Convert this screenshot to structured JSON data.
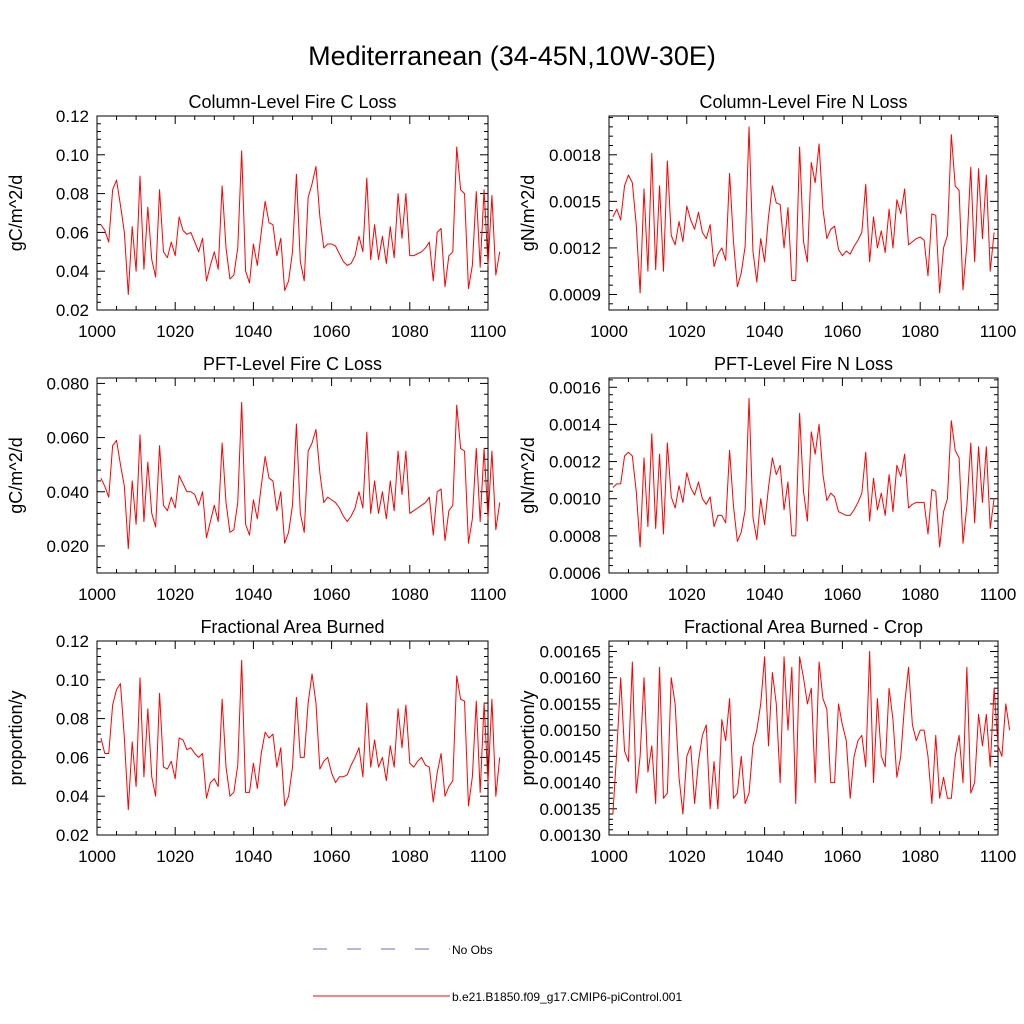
{
  "figure_title": "Mediterranean (34-45N,10W-30E)",
  "colors": {
    "model_line": "#ff0000",
    "obs_line": "#6f6fb8",
    "axis": "#000000"
  },
  "legend": {
    "obs_label": "No Obs",
    "model_label": "b.e21.B1850.f09_g17.CMIP6-piControl.001"
  },
  "chart_data": [
    {
      "type": "line",
      "title": "Column-Level Fire C Loss",
      "ylabel": "gC/m^2/d",
      "xlabel": "",
      "xlim": [
        1000,
        1100
      ],
      "ylim": [
        0.02,
        0.12
      ],
      "xticks": [
        1000,
        1020,
        1040,
        1060,
        1080,
        1100
      ],
      "yticks": [
        0.02,
        0.04,
        0.06,
        0.08,
        0.1,
        0.12
      ],
      "ytick_labels": [
        "0.02",
        "0.04",
        "0.06",
        "0.08",
        "0.10",
        "0.12"
      ],
      "series": [
        {
          "name": "b.e21.B1850.f09_g17.CMIP6-piControl.001",
          "x0": 1001,
          "values": [
            0.064,
            0.061,
            0.055,
            0.082,
            0.087,
            0.074,
            0.06,
            0.028,
            0.063,
            0.04,
            0.089,
            0.041,
            0.073,
            0.046,
            0.037,
            0.082,
            0.05,
            0.047,
            0.055,
            0.048,
            0.068,
            0.061,
            0.059,
            0.06,
            0.055,
            0.05,
            0.057,
            0.035,
            0.043,
            0.05,
            0.041,
            0.084,
            0.052,
            0.036,
            0.038,
            0.052,
            0.102,
            0.04,
            0.034,
            0.054,
            0.043,
            0.06,
            0.076,
            0.065,
            0.064,
            0.048,
            0.057,
            0.03,
            0.035,
            0.05,
            0.09,
            0.045,
            0.035,
            0.078,
            0.085,
            0.094,
            0.068,
            0.052,
            0.054,
            0.054,
            0.053,
            0.049,
            0.045,
            0.043,
            0.044,
            0.048,
            0.058,
            0.05,
            0.088,
            0.046,
            0.064,
            0.046,
            0.058,
            0.044,
            0.063,
            0.047,
            0.08,
            0.057,
            0.08,
            0.048,
            0.048,
            0.049,
            0.05,
            0.052,
            0.055,
            0.035,
            0.06,
            0.062,
            0.032,
            0.048,
            0.05,
            0.104,
            0.082,
            0.08,
            0.031,
            0.043,
            0.081,
            0.042,
            0.082,
            0.043,
            0.079,
            0.038,
            0.05
          ]
        }
      ]
    },
    {
      "type": "line",
      "title": "Column-Level Fire N Loss",
      "ylabel": "gN/m^2/d",
      "xlabel": "",
      "xlim": [
        1000,
        1100
      ],
      "ylim": [
        0.0008,
        0.00205
      ],
      "xticks": [
        1000,
        1020,
        1040,
        1060,
        1080,
        1100
      ],
      "yticks": [
        0.0009,
        0.0012,
        0.0015,
        0.0018
      ],
      "ytick_labels": [
        "0.0009",
        "0.0012",
        "0.0015",
        "0.0018"
      ],
      "series": [
        {
          "name": "b.e21.B1850.f09_g17.CMIP6-piControl.001",
          "x0": 1001,
          "values": [
            0.0014,
            0.00145,
            0.00138,
            0.0016,
            0.00167,
            0.00162,
            0.00135,
            0.00091,
            0.00158,
            0.00105,
            0.00181,
            0.00106,
            0.0016,
            0.00105,
            0.00176,
            0.00128,
            0.00122,
            0.00137,
            0.00124,
            0.00147,
            0.00138,
            0.00132,
            0.00143,
            0.0013,
            0.00126,
            0.00135,
            0.00108,
            0.00116,
            0.0012,
            0.00112,
            0.00168,
            0.00124,
            0.00095,
            0.00104,
            0.00121,
            0.00198,
            0.00118,
            0.00098,
            0.00126,
            0.00111,
            0.0014,
            0.0016,
            0.00149,
            0.00148,
            0.0012,
            0.00146,
            0.00099,
            0.00099,
            0.00185,
            0.00124,
            0.00111,
            0.00175,
            0.00162,
            0.00187,
            0.00145,
            0.00126,
            0.00132,
            0.00134,
            0.00119,
            0.00115,
            0.00118,
            0.00116,
            0.00121,
            0.00125,
            0.0013,
            0.00161,
            0.00111,
            0.0014,
            0.0012,
            0.00131,
            0.00117,
            0.00145,
            0.0012,
            0.00151,
            0.00142,
            0.00158,
            0.00122,
            0.00124,
            0.00126,
            0.00127,
            0.00125,
            0.00102,
            0.00142,
            0.00141,
            0.00091,
            0.0012,
            0.00128,
            0.00193,
            0.0016,
            0.00157,
            0.00093,
            0.00122,
            0.00172,
            0.00111,
            0.00171,
            0.00126,
            0.00167,
            0.00105,
            0.0013
          ]
        }
      ]
    },
    {
      "type": "line",
      "title": "PFT-Level Fire C Loss",
      "ylabel": "gC/m^2/d",
      "xlabel": "",
      "xlim": [
        1000,
        1100
      ],
      "ylim": [
        0.01,
        0.082
      ],
      "xticks": [
        1000,
        1020,
        1040,
        1060,
        1080,
        1100
      ],
      "yticks": [
        0.02,
        0.04,
        0.06,
        0.08
      ],
      "ytick_labels": [
        "0.020",
        "0.040",
        "0.060",
        "0.080"
      ],
      "series": [
        {
          "name": "b.e21.B1850.f09_g17.CMIP6-piControl.001",
          "x0": 1001,
          "values": [
            0.045,
            0.042,
            0.038,
            0.057,
            0.059,
            0.05,
            0.042,
            0.019,
            0.044,
            0.028,
            0.061,
            0.029,
            0.051,
            0.032,
            0.027,
            0.057,
            0.035,
            0.033,
            0.038,
            0.034,
            0.046,
            0.043,
            0.04,
            0.04,
            0.039,
            0.035,
            0.04,
            0.023,
            0.029,
            0.035,
            0.029,
            0.058,
            0.036,
            0.025,
            0.026,
            0.036,
            0.073,
            0.028,
            0.024,
            0.037,
            0.03,
            0.042,
            0.053,
            0.045,
            0.044,
            0.033,
            0.04,
            0.021,
            0.025,
            0.035,
            0.065,
            0.032,
            0.025,
            0.055,
            0.058,
            0.063,
            0.047,
            0.036,
            0.038,
            0.037,
            0.036,
            0.034,
            0.031,
            0.029,
            0.031,
            0.034,
            0.04,
            0.034,
            0.062,
            0.032,
            0.044,
            0.032,
            0.04,
            0.03,
            0.044,
            0.033,
            0.055,
            0.039,
            0.055,
            0.032,
            0.033,
            0.034,
            0.035,
            0.036,
            0.038,
            0.024,
            0.04,
            0.041,
            0.022,
            0.033,
            0.035,
            0.072,
            0.056,
            0.055,
            0.021,
            0.03,
            0.056,
            0.029,
            0.056,
            0.03,
            0.055,
            0.026,
            0.036
          ]
        }
      ]
    },
    {
      "type": "line",
      "title": "PFT-Level Fire N Loss",
      "ylabel": "gN/m^2/d",
      "xlabel": "",
      "xlim": [
        1000,
        1100
      ],
      "ylim": [
        0.0006,
        0.00165
      ],
      "xticks": [
        1000,
        1020,
        1040,
        1060,
        1080,
        1100
      ],
      "yticks": [
        0.0006,
        0.0008,
        0.001,
        0.0012,
        0.0014,
        0.0016
      ],
      "ytick_labels": [
        "0.0006",
        "0.0008",
        "0.0010",
        "0.0012",
        "0.0014",
        "0.0016"
      ],
      "series": [
        {
          "name": "b.e21.B1850.f09_g17.CMIP6-piControl.001",
          "x0": 1001,
          "values": [
            0.00106,
            0.00108,
            0.00108,
            0.00123,
            0.00125,
            0.00123,
            0.00104,
            0.00074,
            0.00122,
            0.00085,
            0.00135,
            0.00084,
            0.00124,
            0.00081,
            0.0013,
            0.00101,
            0.00095,
            0.00107,
            0.00098,
            0.00114,
            0.00106,
            0.00102,
            0.00109,
            0.001,
            0.00097,
            0.00101,
            0.00085,
            0.00091,
            0.00091,
            0.00087,
            0.00126,
            0.00096,
            0.00077,
            0.00082,
            0.00094,
            0.00154,
            0.0009,
            0.00078,
            0.001,
            0.00086,
            0.00106,
            0.00122,
            0.00113,
            0.00118,
            0.00094,
            0.00109,
            0.0008,
            0.0008,
            0.00146,
            0.00104,
            0.00088,
            0.00136,
            0.00124,
            0.0014,
            0.00113,
            0.00099,
            0.00103,
            0.00101,
            0.00093,
            0.00092,
            0.00091,
            0.00091,
            0.00094,
            0.00098,
            0.00103,
            0.00125,
            0.00088,
            0.00111,
            0.00094,
            0.00103,
            0.00091,
            0.00113,
            0.00093,
            0.00118,
            0.00112,
            0.00124,
            0.00095,
            0.00097,
            0.00098,
            0.00098,
            0.00098,
            0.00081,
            0.00105,
            0.00104,
            0.00074,
            0.00093,
            0.001,
            0.00142,
            0.00126,
            0.00122,
            0.00076,
            0.00096,
            0.0013,
            0.00087,
            0.00128,
            0.00098,
            0.00128,
            0.00084,
            0.001
          ]
        }
      ]
    },
    {
      "type": "line",
      "title": "Fractional Area Burned",
      "ylabel": "proportion/y",
      "xlabel": "",
      "xlim": [
        1000,
        1100
      ],
      "ylim": [
        0.02,
        0.12
      ],
      "xticks": [
        1000,
        1020,
        1040,
        1060,
        1080,
        1100
      ],
      "yticks": [
        0.02,
        0.04,
        0.06,
        0.08,
        0.1,
        0.12
      ],
      "ytick_labels": [
        "0.02",
        "0.04",
        "0.06",
        "0.08",
        "0.10",
        "0.12"
      ],
      "series": [
        {
          "name": "b.e21.B1850.f09_g17.CMIP6-piControl.001",
          "x0": 1001,
          "values": [
            0.07,
            0.062,
            0.062,
            0.087,
            0.095,
            0.098,
            0.07,
            0.033,
            0.068,
            0.045,
            0.101,
            0.05,
            0.085,
            0.05,
            0.04,
            0.093,
            0.055,
            0.054,
            0.058,
            0.049,
            0.07,
            0.069,
            0.064,
            0.065,
            0.062,
            0.06,
            0.062,
            0.039,
            0.047,
            0.049,
            0.045,
            0.09,
            0.055,
            0.04,
            0.042,
            0.056,
            0.11,
            0.042,
            0.042,
            0.057,
            0.044,
            0.062,
            0.073,
            0.07,
            0.072,
            0.055,
            0.065,
            0.035,
            0.04,
            0.055,
            0.091,
            0.06,
            0.06,
            0.088,
            0.103,
            0.088,
            0.054,
            0.058,
            0.06,
            0.052,
            0.047,
            0.05,
            0.05,
            0.051,
            0.056,
            0.06,
            0.065,
            0.05,
            0.088,
            0.055,
            0.069,
            0.055,
            0.06,
            0.048,
            0.066,
            0.055,
            0.085,
            0.065,
            0.087,
            0.057,
            0.055,
            0.058,
            0.06,
            0.056,
            0.055,
            0.037,
            0.052,
            0.062,
            0.04,
            0.045,
            0.048,
            0.102,
            0.09,
            0.089,
            0.035,
            0.05,
            0.089,
            0.042,
            0.088,
            0.047,
            0.09,
            0.04,
            0.06
          ]
        }
      ]
    },
    {
      "type": "line",
      "title": "Fractional Area Burned - Crop",
      "ylabel": "proportion/y",
      "xlabel": "",
      "xlim": [
        1000,
        1100
      ],
      "ylim": [
        0.0013,
        0.00167
      ],
      "xticks": [
        1000,
        1020,
        1040,
        1060,
        1080,
        1100
      ],
      "yticks": [
        0.0013,
        0.00135,
        0.0014,
        0.00145,
        0.0015,
        0.00155,
        0.0016,
        0.00165
      ],
      "ytick_labels": [
        "0.00130",
        "0.00135",
        "0.00140",
        "0.00145",
        "0.00150",
        "0.00155",
        "0.00160",
        "0.00165"
      ],
      "series": [
        {
          "name": "b.e21.B1850.f09_g17.CMIP6-piControl.001",
          "x0": 1001,
          "values": [
            0.00134,
            0.00146,
            0.0016,
            0.00146,
            0.00144,
            0.00163,
            0.00138,
            0.00145,
            0.0016,
            0.00142,
            0.00147,
            0.00136,
            0.00162,
            0.00137,
            0.00138,
            0.0016,
            0.00155,
            0.00141,
            0.00134,
            0.00145,
            0.00147,
            0.00136,
            0.00144,
            0.00149,
            0.00151,
            0.00135,
            0.00144,
            0.00135,
            0.00152,
            0.00148,
            0.00156,
            0.00137,
            0.00138,
            0.00145,
            0.00136,
            0.00138,
            0.00147,
            0.0015,
            0.00155,
            0.00164,
            0.00147,
            0.00161,
            0.00155,
            0.0014,
            0.00164,
            0.0015,
            0.00162,
            0.00136,
            0.00164,
            0.0016,
            0.00155,
            0.00158,
            0.0014,
            0.00163,
            0.00156,
            0.00154,
            0.0014,
            0.0014,
            0.00155,
            0.00151,
            0.00148,
            0.00137,
            0.00145,
            0.00148,
            0.00149,
            0.00143,
            0.00165,
            0.0014,
            0.00156,
            0.00145,
            0.00143,
            0.00158,
            0.00152,
            0.00141,
            0.00145,
            0.00155,
            0.00162,
            0.00151,
            0.00148,
            0.0015,
            0.0015,
            0.00145,
            0.00136,
            0.00149,
            0.00137,
            0.00141,
            0.00137,
            0.00137,
            0.00145,
            0.00149,
            0.0014,
            0.00162,
            0.00138,
            0.0014,
            0.00153,
            0.00147,
            0.00153,
            0.00143,
            0.00158,
            0.00147,
            0.00145,
            0.00155,
            0.0015
          ]
        }
      ]
    }
  ]
}
